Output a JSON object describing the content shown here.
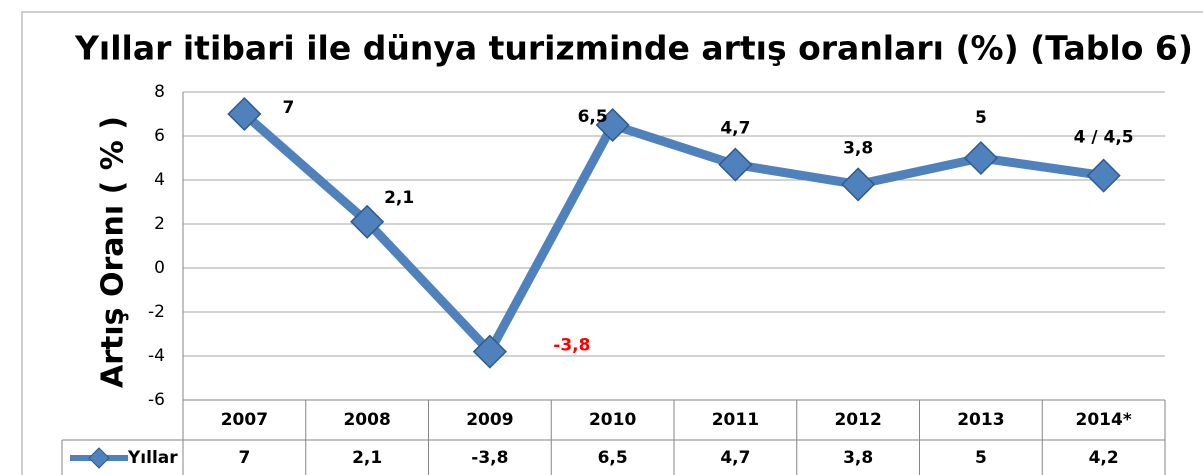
{
  "chart_data": {
    "type": "line",
    "title": "Yıllar itibari ile dünya turizminde artış oranları (%) (Tablo 6)",
    "y_label": "Artış Oranı ( % )",
    "categories": [
      "2007",
      "2008",
      "2009",
      "2010",
      "2011",
      "2012",
      "2013",
      "2014*"
    ],
    "series": [
      {
        "name": "Yıllar",
        "color": "#4f81bd",
        "values": [
          7,
          2.1,
          -3.8,
          6.5,
          4.7,
          3.8,
          5,
          4.2
        ],
        "value_labels": [
          "7",
          "2,1",
          "-3,8",
          "6,5",
          "4,7",
          "3,8",
          "5",
          "4 / 4,5"
        ],
        "value_label_colors": [
          "#000000",
          "#000000",
          "#ff0000",
          "#000000",
          "#000000",
          "#000000",
          "#000000",
          "#000000"
        ],
        "table_labels": [
          "7",
          "2,1",
          "-3,8",
          "6,5",
          "4,7",
          "3,8",
          "5",
          "4,2"
        ]
      }
    ],
    "ylim": [
      -6,
      8
    ],
    "yticks": [
      -6,
      -4,
      -2,
      0,
      2,
      4,
      6,
      8
    ],
    "grid": true
  }
}
